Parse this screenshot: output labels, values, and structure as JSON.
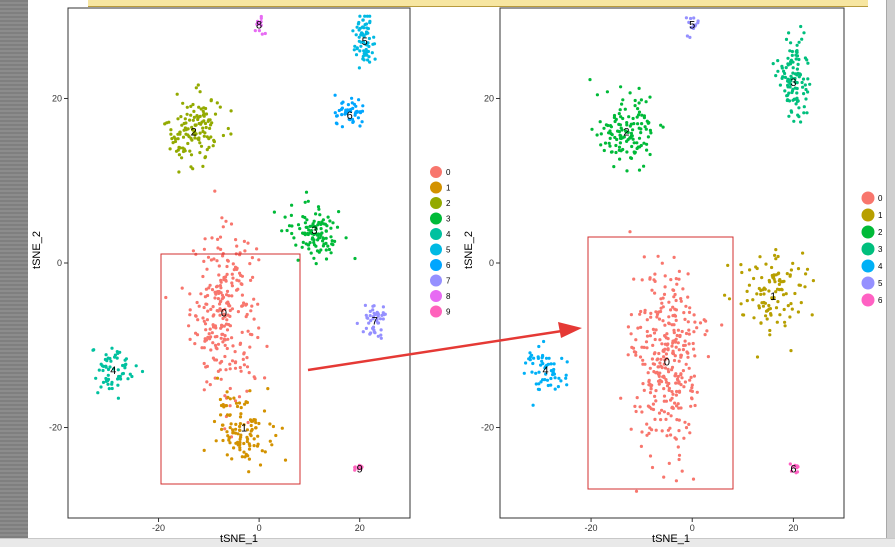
{
  "chart_data": [
    {
      "type": "scatter",
      "ylabel": "tSNE_2",
      "xlabel": "tSNE_1",
      "xlim": [
        -38,
        30
      ],
      "ylim": [
        -31,
        31
      ],
      "xticks": [
        -20,
        0,
        20
      ],
      "yticks": [
        -20,
        0,
        20
      ],
      "grid": false,
      "legend": "right",
      "annotation": "red rectangle highlighting clusters 0 and 1",
      "clusters": [
        {
          "name": "0",
          "color": "#F8766D",
          "center": [
            -7,
            -6
          ],
          "spread": [
            6,
            9
          ],
          "n": 260
        },
        {
          "name": "1",
          "color": "#D39200",
          "center": [
            -3,
            -20
          ],
          "spread": [
            5,
            4
          ],
          "n": 110
        },
        {
          "name": "2",
          "color": "#93AA00",
          "center": [
            -13,
            16
          ],
          "spread": [
            5,
            4
          ],
          "n": 130
        },
        {
          "name": "3",
          "color": "#00BA38",
          "center": [
            11,
            4
          ],
          "spread": [
            5,
            3
          ],
          "n": 110
        },
        {
          "name": "4",
          "color": "#00C19F",
          "center": [
            -29,
            -13
          ],
          "spread": [
            4,
            3
          ],
          "n": 60
        },
        {
          "name": "5",
          "color": "#00B9E3",
          "center": [
            21,
            27
          ],
          "spread": [
            2,
            3
          ],
          "n": 70
        },
        {
          "name": "6",
          "color": "#00A6FF",
          "center": [
            18,
            18
          ],
          "spread": [
            3,
            2
          ],
          "n": 45
        },
        {
          "name": "7",
          "color": "#9590FF",
          "center": [
            23,
            -7
          ],
          "spread": [
            2,
            2
          ],
          "n": 45
        },
        {
          "name": "8",
          "color": "#E76BF3",
          "center": [
            0,
            29
          ],
          "spread": [
            1,
            1
          ],
          "n": 12
        },
        {
          "name": "9",
          "color": "#FF62BC",
          "center": [
            20,
            -25
          ],
          "spread": [
            1,
            0.6
          ],
          "n": 10
        }
      ],
      "legend_items": [
        "0",
        "1",
        "2",
        "3",
        "4",
        "5",
        "6",
        "7",
        "8",
        "9"
      ]
    },
    {
      "type": "scatter",
      "ylabel": "tSNE_2",
      "xlabel": "tSNE_1",
      "xlim": [
        -38,
        30
      ],
      "ylim": [
        -31,
        31
      ],
      "xticks": [
        -20,
        0,
        20
      ],
      "yticks": [
        -20,
        0,
        20
      ],
      "grid": false,
      "legend": "right",
      "annotation": "red rectangle highlighting merged cluster 0",
      "clusters": [
        {
          "name": "0",
          "color": "#F8766D",
          "center": [
            -5,
            -12
          ],
          "spread": [
            6,
            10
          ],
          "n": 330
        },
        {
          "name": "1",
          "color": "#B79F00",
          "center": [
            16,
            -4
          ],
          "spread": [
            6,
            5
          ],
          "n": 110
        },
        {
          "name": "2",
          "color": "#00BA38",
          "center": [
            -13,
            16
          ],
          "spread": [
            5,
            4
          ],
          "n": 130
        },
        {
          "name": "3",
          "color": "#00BF7D",
          "center": [
            20,
            22
          ],
          "spread": [
            3,
            5
          ],
          "n": 110
        },
        {
          "name": "4",
          "color": "#00B0F6",
          "center": [
            -29,
            -13
          ],
          "spread": [
            4,
            3
          ],
          "n": 60
        },
        {
          "name": "5",
          "color": "#9590FF",
          "center": [
            0,
            29
          ],
          "spread": [
            1,
            1
          ],
          "n": 14
        },
        {
          "name": "6",
          "color": "#FF61C3",
          "center": [
            20,
            -25
          ],
          "spread": [
            1,
            0.6
          ],
          "n": 10
        }
      ],
      "legend_items": [
        "0",
        "1",
        "2",
        "3",
        "4",
        "5",
        "6"
      ]
    }
  ]
}
